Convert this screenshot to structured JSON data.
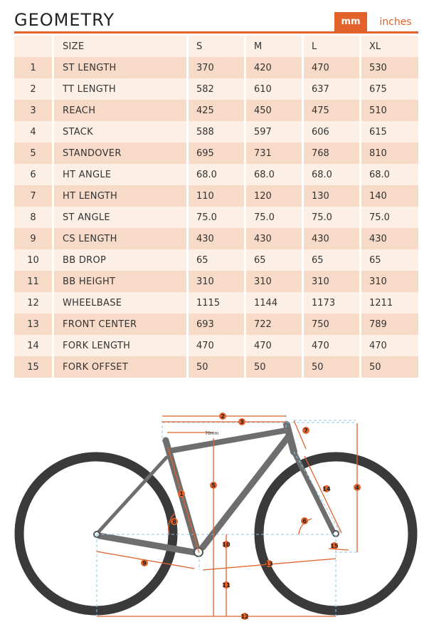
{
  "header": {
    "title": "GEOMETRY",
    "unit_mm": "mm",
    "unit_inches": "inches"
  },
  "colors": {
    "accent": "#e2622a",
    "row_light": "#fbefe6",
    "row_dark": "#f8dac8",
    "frame": "#6e6e6e",
    "tire": "#3a3a3a"
  },
  "table": {
    "columns": [
      "SIZE",
      "S",
      "M",
      "L",
      "XL"
    ],
    "rows": [
      {
        "n": "1",
        "name": "ST LENGTH",
        "values": [
          "370",
          "420",
          "470",
          "530"
        ]
      },
      {
        "n": "2",
        "name": "TT LENGTH",
        "values": [
          "582",
          "610",
          "637",
          "675"
        ]
      },
      {
        "n": "3",
        "name": "REACH",
        "values": [
          "425",
          "450",
          "475",
          "510"
        ]
      },
      {
        "n": "4",
        "name": "STACK",
        "values": [
          "588",
          "597",
          "606",
          "615"
        ]
      },
      {
        "n": "5",
        "name": "STANDOVER",
        "values": [
          "695",
          "731",
          "768",
          "810"
        ]
      },
      {
        "n": "6",
        "name": "HT ANGLE",
        "values": [
          "68.0",
          "68.0",
          "68.0",
          "68.0"
        ]
      },
      {
        "n": "7",
        "name": "HT LENGTH",
        "values": [
          "110",
          "120",
          "130",
          "140"
        ]
      },
      {
        "n": "8",
        "name": "ST ANGLE",
        "values": [
          "75.0",
          "75.0",
          "75.0",
          "75.0"
        ]
      },
      {
        "n": "9",
        "name": "CS LENGTH",
        "values": [
          "430",
          "430",
          "430",
          "430"
        ]
      },
      {
        "n": "10",
        "name": "BB DROP",
        "values": [
          "65",
          "65",
          "65",
          "65"
        ]
      },
      {
        "n": "11",
        "name": "BB HEIGHT",
        "values": [
          "310",
          "310",
          "310",
          "310"
        ]
      },
      {
        "n": "12",
        "name": "WHEELBASE",
        "values": [
          "1115",
          "1144",
          "1173",
          "1211"
        ]
      },
      {
        "n": "13",
        "name": "FRONT CENTER",
        "values": [
          "693",
          "722",
          "750",
          "789"
        ]
      },
      {
        "n": "14",
        "name": "FORK LENGTH",
        "values": [
          "470",
          "470",
          "470",
          "470"
        ]
      },
      {
        "n": "15",
        "name": "FORK OFFSET",
        "values": [
          "50",
          "50",
          "50",
          "50"
        ]
      }
    ]
  },
  "diagram": {
    "offset_note": "70mm",
    "labels": [
      "1",
      "2",
      "3",
      "4",
      "5",
      "6",
      "7",
      "8",
      "9",
      "10",
      "11",
      "12",
      "13",
      "14",
      "15"
    ]
  }
}
